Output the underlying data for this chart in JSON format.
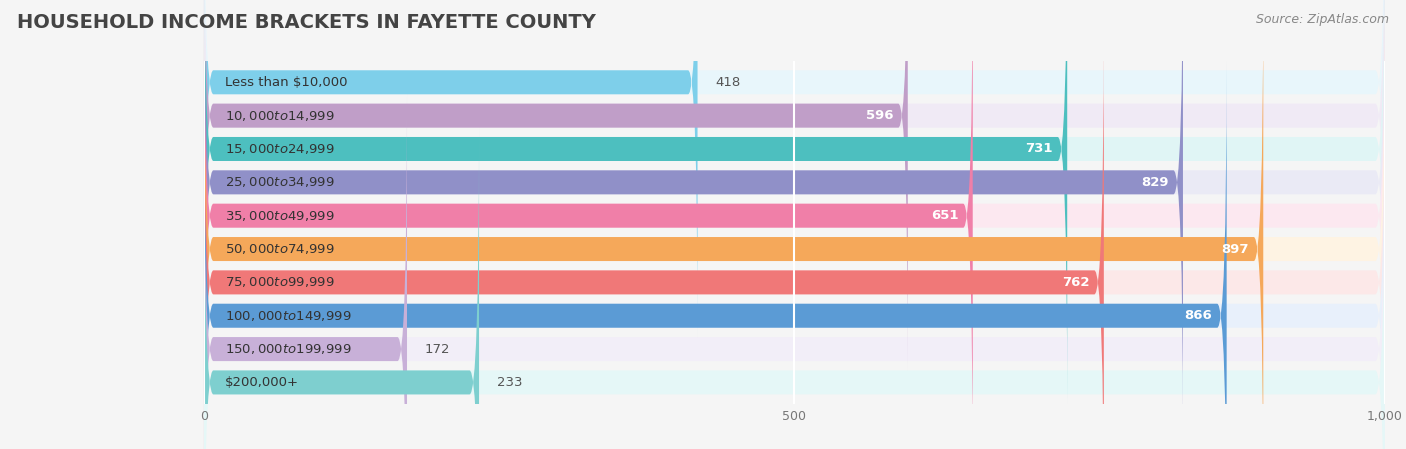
{
  "title": "HOUSEHOLD INCOME BRACKETS IN FAYETTE COUNTY",
  "source": "Source: ZipAtlas.com",
  "categories": [
    "Less than $10,000",
    "$10,000 to $14,999",
    "$15,000 to $24,999",
    "$25,000 to $34,999",
    "$35,000 to $49,999",
    "$50,000 to $74,999",
    "$75,000 to $99,999",
    "$100,000 to $149,999",
    "$150,000 to $199,999",
    "$200,000+"
  ],
  "values": [
    418,
    596,
    731,
    829,
    651,
    897,
    762,
    866,
    172,
    233
  ],
  "bar_colors": [
    "#7ecfea",
    "#c09ec8",
    "#4dbfbf",
    "#9090c8",
    "#f07fa8",
    "#f5a85a",
    "#f07878",
    "#5b9bd5",
    "#c8b0d8",
    "#7ecfcf"
  ],
  "bar_bg_colors": [
    "#e8f6fb",
    "#f0eaf5",
    "#e0f5f5",
    "#eaeaf5",
    "#fce8f0",
    "#fef3e3",
    "#fce8e8",
    "#e8f0fb",
    "#f2eef8",
    "#e5f7f7"
  ],
  "xlim": [
    0,
    1000
  ],
  "xticks": [
    0,
    500,
    1000
  ],
  "background_color": "#f5f5f5",
  "title_fontsize": 14,
  "label_fontsize": 9.5,
  "value_fontsize": 9.5,
  "source_fontsize": 9
}
